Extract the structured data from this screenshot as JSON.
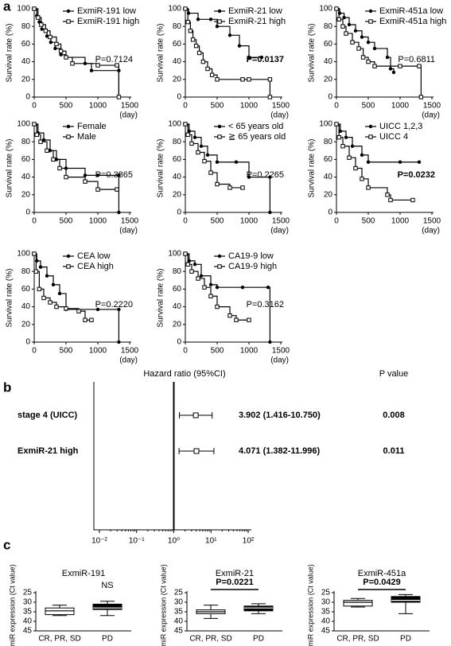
{
  "panel_labels": [
    "a",
    "b",
    "c"
  ],
  "chart_data": [
    {
      "type": "survival",
      "xlabel": "(day)",
      "ylabel": "Survival rate (%)",
      "xlim": [
        0,
        1500
      ],
      "xticks": [
        0,
        500,
        1000,
        1500
      ],
      "ylim": [
        0,
        100
      ],
      "yticks": [
        0,
        20,
        40,
        60,
        80,
        100
      ],
      "annotation": "P=0.7124",
      "annotation_bold": false,
      "series": [
        {
          "name": "ExmiR-191 low",
          "marker": "circle",
          "color": "#000000",
          "x": [
            0,
            40,
            80,
            120,
            200,
            260,
            330,
            420,
            500,
            800,
            900,
            1330,
            1330
          ],
          "values": [
            100,
            92,
            85,
            77,
            69,
            62,
            55,
            48,
            45,
            38,
            30,
            30,
            0
          ]
        },
        {
          "name": "ExmiR-191 high",
          "marker": "square",
          "color": "#000000",
          "x": [
            0,
            60,
            110,
            180,
            250,
            350,
            420,
            500,
            600,
            1000,
            1300,
            1330
          ],
          "values": [
            100,
            90,
            82,
            75,
            68,
            60,
            52,
            45,
            38,
            36,
            36,
            0
          ]
        }
      ]
    },
    {
      "type": "survival",
      "xlabel": "(day)",
      "ylabel": "Survival rate (%)",
      "xlim": [
        0,
        1500
      ],
      "xticks": [
        0,
        500,
        1000,
        1500
      ],
      "ylim": [
        0,
        100
      ],
      "yticks": [
        0,
        20,
        40,
        60,
        80,
        100
      ],
      "annotation": "P=0.0137",
      "annotation_bold": true,
      "series": [
        {
          "name": "ExmiR-21 low",
          "marker": "circle",
          "color": "#000000",
          "x": [
            0,
            50,
            200,
            400,
            500,
            700,
            850,
            1000,
            1200
          ],
          "values": [
            100,
            95,
            88,
            88,
            80,
            70,
            58,
            45,
            45
          ]
        },
        {
          "name": "ExmiR-21 high",
          "marker": "square",
          "color": "#000000",
          "x": [
            0,
            40,
            80,
            120,
            170,
            220,
            280,
            350,
            420,
            500,
            900,
            1000,
            1330,
            1330
          ],
          "values": [
            100,
            85,
            75,
            65,
            58,
            50,
            40,
            32,
            25,
            20,
            20,
            20,
            20,
            0
          ]
        }
      ]
    },
    {
      "type": "survival",
      "xlabel": "(day)",
      "ylabel": "Survival rate (%)",
      "xlim": [
        0,
        1500
      ],
      "xticks": [
        0,
        500,
        1000,
        1500
      ],
      "ylim": [
        0,
        100
      ],
      "yticks": [
        0,
        20,
        40,
        60,
        80,
        100
      ],
      "annotation": "P=0.6811",
      "annotation_bold": false,
      "series": [
        {
          "name": "ExmiR-451a low",
          "marker": "circle",
          "color": "#000000",
          "x": [
            0,
            50,
            120,
            200,
            300,
            400,
            500,
            600,
            800,
            850,
            900
          ],
          "values": [
            100,
            95,
            90,
            82,
            75,
            68,
            62,
            55,
            45,
            32,
            28
          ]
        },
        {
          "name": "ExmiR-451a high",
          "marker": "square",
          "color": "#000000",
          "x": [
            0,
            40,
            100,
            150,
            250,
            350,
            420,
            500,
            600,
            1000,
            1300,
            1330
          ],
          "values": [
            100,
            88,
            80,
            72,
            62,
            55,
            45,
            40,
            35,
            35,
            35,
            0
          ]
        }
      ]
    },
    {
      "type": "survival",
      "xlabel": "(day)",
      "ylabel": "Survival rate (%)",
      "xlim": [
        0,
        1500
      ],
      "xticks": [
        0,
        500,
        1000,
        1500
      ],
      "ylim": [
        0,
        100
      ],
      "yticks": [
        0,
        20,
        40,
        60,
        80,
        100
      ],
      "annotation": "P=0.3865",
      "annotation_bold": false,
      "series": [
        {
          "name": "Female",
          "marker": "circle",
          "color": "#000000",
          "x": [
            0,
            60,
            150,
            250,
            350,
            500,
            800,
            1000,
            1330,
            1330
          ],
          "values": [
            100,
            90,
            82,
            70,
            60,
            50,
            42,
            42,
            42,
            0
          ]
        },
        {
          "name": "Male",
          "marker": "square",
          "color": "#000000",
          "x": [
            0,
            40,
            100,
            200,
            300,
            400,
            500,
            800,
            1000,
            1300
          ],
          "values": [
            100,
            88,
            80,
            70,
            60,
            50,
            40,
            35,
            26,
            26
          ]
        }
      ]
    },
    {
      "type": "survival",
      "xlabel": "(day)",
      "ylabel": "Survival rate (%)",
      "xlim": [
        0,
        1500
      ],
      "xticks": [
        0,
        500,
        1000,
        1500
      ],
      "ylim": [
        0,
        100
      ],
      "yticks": [
        0,
        20,
        40,
        60,
        80,
        100
      ],
      "annotation": "P=0.2265",
      "annotation_bold": false,
      "series": [
        {
          "name": "< 65 years old",
          "marker": "circle",
          "color": "#000000",
          "x": [
            0,
            60,
            150,
            250,
            350,
            500,
            800,
            1000,
            1330,
            1330
          ],
          "values": [
            100,
            92,
            85,
            75,
            65,
            57,
            57,
            40,
            40,
            0
          ]
        },
        {
          "name": "≧ 65 years old",
          "marker": "square",
          "color": "#000000",
          "x": [
            0,
            40,
            100,
            200,
            300,
            400,
            500,
            700,
            900
          ],
          "values": [
            100,
            88,
            78,
            68,
            58,
            45,
            32,
            28,
            28
          ]
        }
      ]
    },
    {
      "type": "survival",
      "xlabel": "(day)",
      "ylabel": "Survival rate (%)",
      "xlim": [
        0,
        1500
      ],
      "xticks": [
        0,
        500,
        1000,
        1500
      ],
      "ylim": [
        0,
        100
      ],
      "yticks": [
        0,
        20,
        40,
        60,
        80,
        100
      ],
      "annotation": "P=0.0232",
      "annotation_bold": true,
      "series": [
        {
          "name": "UICC 1,2,3",
          "marker": "circle",
          "color": "#000000",
          "x": [
            0,
            60,
            150,
            250,
            400,
            500,
            1000,
            1300
          ],
          "values": [
            100,
            92,
            85,
            75,
            65,
            57,
            57,
            57
          ]
        },
        {
          "name": "UICC 4",
          "marker": "square",
          "color": "#000000",
          "x": [
            0,
            40,
            100,
            200,
            300,
            400,
            500,
            800,
            850,
            1200
          ],
          "values": [
            100,
            85,
            75,
            62,
            50,
            38,
            28,
            20,
            14,
            14
          ]
        }
      ]
    },
    {
      "type": "survival",
      "xlabel": "(day)",
      "ylabel": "Survival rate (%)",
      "xlim": [
        0,
        1500
      ],
      "xticks": [
        0,
        500,
        1000,
        1500
      ],
      "ylim": [
        0,
        100
      ],
      "yticks": [
        0,
        20,
        40,
        60,
        80,
        100
      ],
      "annotation": "P=0.2220",
      "annotation_bold": false,
      "series": [
        {
          "name": "CEA low",
          "marker": "circle",
          "color": "#000000",
          "x": [
            0,
            40,
            100,
            200,
            300,
            400,
            500,
            1000,
            1330,
            1330
          ],
          "values": [
            100,
            92,
            85,
            75,
            65,
            55,
            37,
            37,
            37,
            0
          ]
        },
        {
          "name": "CEA high",
          "marker": "square",
          "color": "#000000",
          "x": [
            0,
            30,
            80,
            150,
            250,
            350,
            500,
            700,
            800,
            900
          ],
          "values": [
            100,
            80,
            60,
            50,
            45,
            40,
            38,
            35,
            25,
            25
          ]
        }
      ]
    },
    {
      "type": "survival",
      "xlabel": "(day)",
      "ylabel": "Survival rate (%)",
      "xlim": [
        0,
        1500
      ],
      "xticks": [
        0,
        500,
        1000,
        1500
      ],
      "ylim": [
        0,
        100
      ],
      "yticks": [
        0,
        20,
        40,
        60,
        80,
        100
      ],
      "annotation": "P=0.3162",
      "annotation_bold": false,
      "series": [
        {
          "name": "CA19-9 low",
          "marker": "circle",
          "color": "#000000",
          "x": [
            0,
            60,
            150,
            250,
            400,
            500,
            900,
            1300,
            1330
          ],
          "values": [
            100,
            92,
            88,
            75,
            65,
            62,
            62,
            62,
            0
          ]
        },
        {
          "name": "CA19-9 high",
          "marker": "square",
          "color": "#000000",
          "x": [
            0,
            40,
            100,
            200,
            300,
            400,
            500,
            700,
            800,
            1000
          ],
          "values": [
            100,
            88,
            80,
            72,
            62,
            52,
            40,
            30,
            25,
            25
          ]
        }
      ]
    },
    {
      "type": "forest",
      "xlabel": "Hazard ratio (95%CI)",
      "p_header": "P value",
      "xlog": true,
      "xlim": [
        0.01,
        100
      ],
      "xticks": [
        {
          "value": 0.01,
          "label": "10⁻²"
        },
        {
          "value": 0.1,
          "label": "10⁻¹"
        },
        {
          "value": 1,
          "label": "10⁰"
        },
        {
          "value": 10,
          "label": "10¹"
        },
        {
          "value": 100,
          "label": "10²"
        }
      ],
      "reference": 1,
      "categories": [
        "stage 4 (UICC)",
        "ExmiR-21 high"
      ],
      "values": [
        3.902,
        4.071
      ],
      "lower": [
        1.416,
        1.382
      ],
      "upper": [
        10.75,
        11.996
      ],
      "value_labels": [
        "3.902 (1.416-10.750)",
        "4.071 (1.382-11.996)"
      ],
      "p_values": [
        0.008,
        0.011
      ]
    },
    {
      "type": "box",
      "title": "ExmiR-191",
      "ylabel": "miR expression (Ct value)",
      "categories": [
        "CR, PR, SD",
        "PD"
      ],
      "ylim": [
        25,
        45
      ],
      "y_inverted": true,
      "yticks": [
        25,
        30,
        35,
        40,
        45
      ],
      "colors": [
        "#ffffff",
        "#000000"
      ],
      "min": [
        31.5,
        29.5
      ],
      "q1": [
        33,
        31
      ],
      "median": [
        34.5,
        33
      ],
      "q3": [
        36.5,
        33.8
      ],
      "max": [
        37,
        37
      ],
      "significance": "NS",
      "bracket": false
    },
    {
      "type": "box",
      "title": "ExmiR-21",
      "ylabel": "miR expression (Ct value)",
      "categories": [
        "CR, PR, SD",
        "PD"
      ],
      "ylim": [
        25,
        45
      ],
      "y_inverted": true,
      "yticks": [
        25,
        30,
        35,
        40,
        45
      ],
      "colors": [
        "#ffffff",
        "#000000"
      ],
      "min": [
        31.5,
        30.8
      ],
      "q1": [
        34,
        32
      ],
      "median": [
        35,
        33
      ],
      "q3": [
        36,
        34.5
      ],
      "max": [
        38.5,
        36
      ],
      "significance": "P=0.0221",
      "bracket": true
    },
    {
      "type": "box",
      "title": "ExmiR-451a",
      "ylabel": "miR expression (Ct value)",
      "categories": [
        "CR, PR, SD",
        "PD"
      ],
      "ylim": [
        25,
        45
      ],
      "y_inverted": true,
      "yticks": [
        25,
        30,
        35,
        40,
        45
      ],
      "colors": [
        "#ffffff",
        "#000000"
      ],
      "min": [
        28,
        26
      ],
      "q1": [
        29,
        27
      ],
      "median": [
        30,
        29
      ],
      "q3": [
        32,
        30
      ],
      "max": [
        32.5,
        36
      ],
      "significance": "P=0.0429",
      "bracket": true
    }
  ]
}
